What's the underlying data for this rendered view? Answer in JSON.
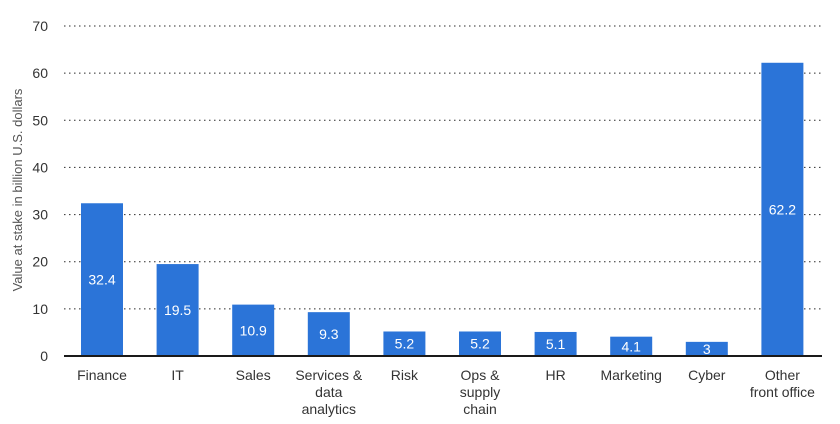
{
  "chart_data": {
    "type": "bar",
    "title": "",
    "xlabel": "",
    "ylabel": "Value at stake in billion U.S. dollars",
    "categories": [
      [
        "Finance"
      ],
      [
        "IT"
      ],
      [
        "Sales"
      ],
      [
        "Services &",
        "data",
        "analytics"
      ],
      [
        "Risk"
      ],
      [
        "Ops &",
        "supply",
        "chain"
      ],
      [
        "HR"
      ],
      [
        "Marketing"
      ],
      [
        "Cyber"
      ],
      [
        "Other",
        "front office"
      ]
    ],
    "values": [
      32.4,
      19.5,
      10.9,
      9.3,
      5.2,
      5.2,
      5.1,
      4.1,
      3,
      62.2
    ],
    "value_labels": [
      "32.4",
      "19.5",
      "10.9",
      "9.3",
      "5.2",
      "5.2",
      "5.1",
      "4.1",
      "3",
      "62.2"
    ],
    "ylim": [
      0,
      70
    ],
    "yticks": [
      0,
      10,
      20,
      30,
      40,
      50,
      60,
      70
    ],
    "grid": true,
    "legend": "none",
    "bar_color": "#2b74d8"
  }
}
